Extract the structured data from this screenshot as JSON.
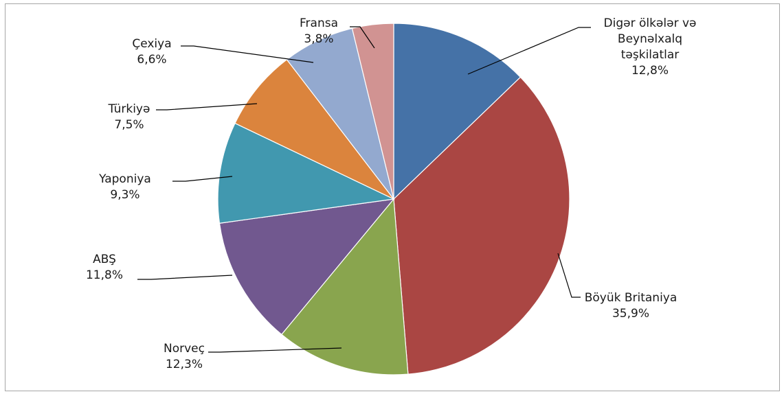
{
  "chart_data": {
    "type": "pie",
    "title": "",
    "legend": "none",
    "colors": [
      "#4572a7",
      "#aa4643",
      "#89a54e",
      "#71588f",
      "#4198af",
      "#db843d",
      "#93a9cf",
      "#d19392"
    ],
    "slices": [
      {
        "label_lines": [
          "Digər ölkələr və",
          "Beynəlxalq",
          "təşkilatlar"
        ],
        "value": 12.8,
        "value_label": "12,8%"
      },
      {
        "label_lines": [
          "Böyük Britaniya"
        ],
        "value": 35.9,
        "value_label": "35,9%"
      },
      {
        "label_lines": [
          "Norveç"
        ],
        "value": 12.3,
        "value_label": "12,3%"
      },
      {
        "label_lines": [
          "ABŞ"
        ],
        "value": 11.8,
        "value_label": "11,8%"
      },
      {
        "label_lines": [
          "Yaponiya"
        ],
        "value": 9.3,
        "value_label": "9,3%"
      },
      {
        "label_lines": [
          "Türkiyə"
        ],
        "value": 7.5,
        "value_label": "7,5%"
      },
      {
        "label_lines": [
          "Çexiya"
        ],
        "value": 6.6,
        "value_label": "6,6%"
      },
      {
        "label_lines": [
          "Fransa"
        ],
        "value": 3.8,
        "value_label": "3,8%"
      }
    ]
  }
}
